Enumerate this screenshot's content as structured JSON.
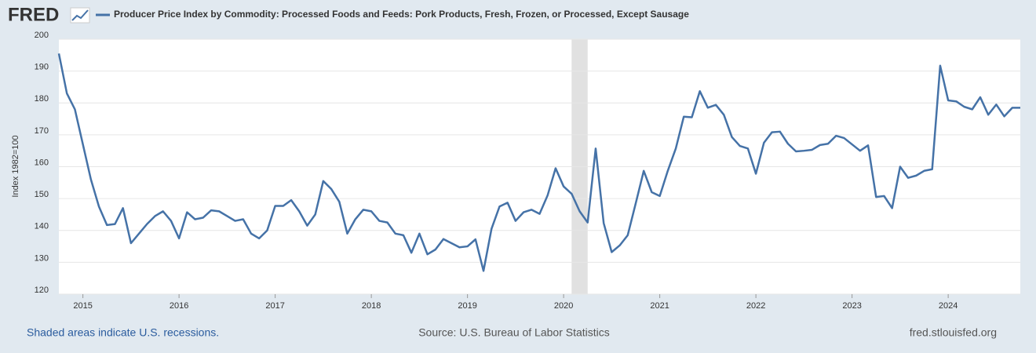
{
  "chart_data": {
    "type": "line",
    "logo": "FRED",
    "title": "Producer Price Index by Commodity: Processed Foods and Feeds: Pork Products, Fresh, Frozen, or Processed, Except Sausage",
    "y_label": "Index 1982=100",
    "recession_note": "Shaded areas indicate U.S. recessions.",
    "source": "Source: U.S. Bureau of Labor Statistics",
    "site": "fred.stlouisfed.org",
    "recessions": [
      {
        "start": "2020-02",
        "end": "2020-04"
      }
    ],
    "x": [
      "2014-10",
      "2014-11",
      "2014-12",
      "2015-01",
      "2015-02",
      "2015-03",
      "2015-04",
      "2015-05",
      "2015-06",
      "2015-07",
      "2015-08",
      "2015-09",
      "2015-10",
      "2015-11",
      "2015-12",
      "2016-01",
      "2016-02",
      "2016-03",
      "2016-04",
      "2016-05",
      "2016-06",
      "2016-07",
      "2016-08",
      "2016-09",
      "2016-10",
      "2016-11",
      "2016-12",
      "2017-01",
      "2017-02",
      "2017-03",
      "2017-04",
      "2017-05",
      "2017-06",
      "2017-07",
      "2017-08",
      "2017-09",
      "2017-10",
      "2017-11",
      "2017-12",
      "2018-01",
      "2018-02",
      "2018-03",
      "2018-04",
      "2018-05",
      "2018-06",
      "2018-07",
      "2018-08",
      "2018-09",
      "2018-10",
      "2018-11",
      "2018-12",
      "2019-01",
      "2019-02",
      "2019-03",
      "2019-04",
      "2019-05",
      "2019-06",
      "2019-07",
      "2019-08",
      "2019-09",
      "2019-10",
      "2019-11",
      "2019-12",
      "2020-01",
      "2020-02",
      "2020-03",
      "2020-04",
      "2020-05",
      "2020-06",
      "2020-07",
      "2020-08",
      "2020-09",
      "2020-10",
      "2020-11",
      "2020-12",
      "2021-01",
      "2021-02",
      "2021-03",
      "2021-04",
      "2021-05",
      "2021-06",
      "2021-07",
      "2021-08",
      "2021-09",
      "2021-10",
      "2021-11",
      "2021-12",
      "2022-01",
      "2022-02",
      "2022-03",
      "2022-04",
      "2022-05",
      "2022-06",
      "2022-07",
      "2022-08",
      "2022-09",
      "2022-10",
      "2022-11",
      "2022-12",
      "2023-01",
      "2023-02",
      "2023-03",
      "2023-04",
      "2023-05",
      "2023-06",
      "2023-07",
      "2023-08",
      "2023-09",
      "2023-10",
      "2023-11",
      "2023-12",
      "2024-01",
      "2024-02",
      "2024-03",
      "2024-04",
      "2024-05",
      "2024-06",
      "2024-07",
      "2024-08",
      "2024-09",
      "2024-10"
    ],
    "series": [
      {
        "name": "Producer Price Index by Commodity: Processed Foods and Feeds: Pork Products, Fresh, Frozen, or Processed, Except Sausage",
        "color": "#4572a7",
        "values": [
          195.5,
          183,
          178,
          167,
          156,
          147.5,
          141.7,
          142,
          147,
          136,
          139,
          142,
          144.5,
          146,
          143,
          137.5,
          145.7,
          143.5,
          144,
          146.3,
          146,
          144.5,
          143,
          143.5,
          139,
          137.5,
          140,
          147.7,
          147.7,
          149.5,
          146,
          141.5,
          145,
          155.5,
          153,
          149,
          139,
          143.5,
          146.5,
          146,
          143,
          142.5,
          139,
          138.5,
          133,
          139,
          132.5,
          134,
          137.3,
          136,
          134.7,
          135,
          137.2,
          127.3,
          140.5,
          147.5,
          148.7,
          143,
          145.7,
          146.5,
          145.2,
          151,
          159.5,
          153.8,
          151.5,
          146,
          142.5,
          165.7,
          142.3,
          133.2,
          135.3,
          138.5,
          148.5,
          158.7,
          152,
          150.8,
          158.7,
          165.7,
          175.7,
          175.5,
          183.7,
          178.5,
          179.4,
          176.3,
          169.3,
          166.5,
          165.7,
          157.8,
          167.5,
          170.8,
          171,
          167.2,
          164.8,
          165,
          165.3,
          166.8,
          167.2,
          169.7,
          169,
          167,
          165,
          166.7,
          150.5,
          150.8,
          147,
          160,
          156.5,
          157.2,
          158.7,
          159.2,
          191.7,
          180.8,
          180.5,
          178.8,
          178,
          181.8,
          176.3,
          179.5,
          175.8,
          178.5,
          178.5
        ]
      }
    ],
    "xlim": [
      2014.75,
      2024.75
    ],
    "xticks": [
      2015,
      2016,
      2017,
      2018,
      2019,
      2020,
      2021,
      2022,
      2023,
      2024
    ],
    "ylim": [
      120,
      200
    ],
    "yticks": [
      120,
      130,
      140,
      150,
      160,
      170,
      180,
      190,
      200
    ],
    "grid": true
  }
}
